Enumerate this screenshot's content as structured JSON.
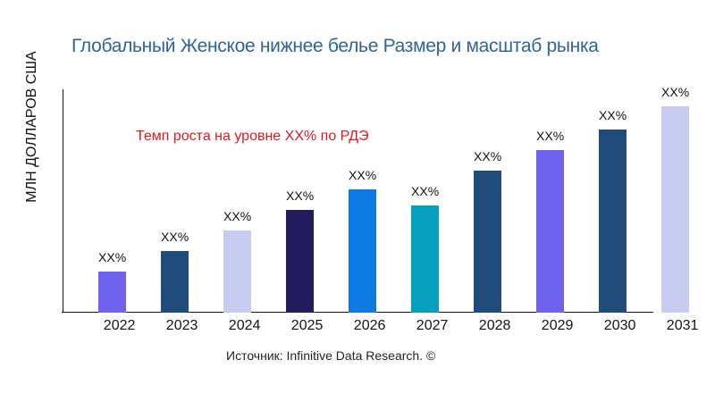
{
  "chart": {
    "title": "Глобальный Женское нижнее белье Размер и масштаб рынка",
    "title_color": "#2e6498",
    "y_axis_label": "МЛН ДОЛЛАРОВ США",
    "annotation": {
      "text": "Темп роста на уровне XX% по РДЭ",
      "color": "#e0191f"
    },
    "source_caption": "Источник: Infinitive Data Research. ©",
    "axis_color": "#141414"
  },
  "chart_data": {
    "type": "bar",
    "title": "Глобальный Женское нижнее белье Размер и масштаб рынка",
    "xlabel": "",
    "ylabel": "МЛН ДОЛЛАРОВ США",
    "categories": [
      "2022",
      "2023",
      "2024",
      "2025",
      "2026",
      "2027",
      "2028",
      "2029",
      "2030",
      "2031"
    ],
    "values": [
      2.0,
      3.0,
      4.0,
      5.0,
      6.0,
      5.2,
      6.9,
      7.9,
      8.9,
      10.0
    ],
    "value_labels": [
      "XX%",
      "XX%",
      "XX%",
      "XX%",
      "XX%",
      "XX%",
      "XX%",
      "XX%",
      "XX%",
      "XX%"
    ],
    "bar_colors": [
      "#6e62ee",
      "#1f4c7a",
      "#c7cbef",
      "#221c5c",
      "#0d79e3",
      "#069fbd",
      "#1f4c7a",
      "#6e62ee",
      "#1f4c7a",
      "#c7cbef"
    ],
    "annotation": "Темп роста на уровне XX% по РДЭ",
    "ylim": [
      0,
      10
    ],
    "grid": false,
    "legend": false,
    "y_ticks_shown": false,
    "units_note": "values are relative (axis unlabeled, data masked as XX%)"
  }
}
